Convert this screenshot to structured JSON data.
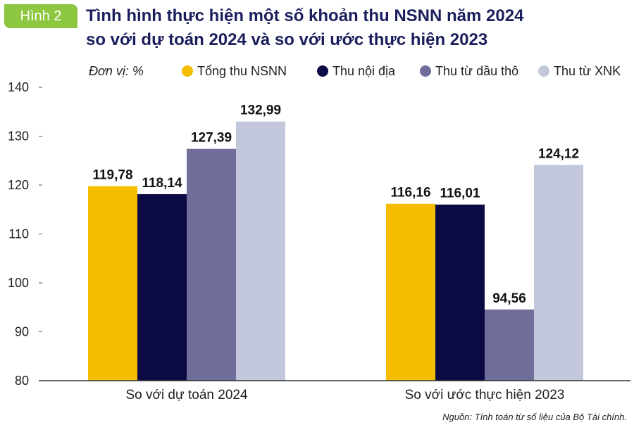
{
  "badge": "Hình 2",
  "title_line1": "Tình hình thực hiện một số khoản thu NSNN năm 2024",
  "title_line2": "so với dự toán 2024 và so với ước thực hiện 2023",
  "unit_label": "Đơn vị: %",
  "source": "Nguồn: Tính toán từ số liệu của Bộ Tài chính.",
  "chart_data": {
    "type": "bar",
    "categories": [
      "So với dự toán 2024",
      "So với ước thực hiện 2023"
    ],
    "series": [
      {
        "name": "Tổng thu NSNN",
        "color": "#f5bd00",
        "values": [
          119.78,
          116.16
        ],
        "labels": [
          "119,78",
          "116,16"
        ]
      },
      {
        "name": "Thu nội địa",
        "color": "#0b0a45",
        "values": [
          118.14,
          116.01
        ],
        "labels": [
          "118,14",
          "116,01"
        ]
      },
      {
        "name": "Thu từ dầu thô",
        "color": "#6f6d99",
        "values": [
          127.39,
          94.56
        ],
        "labels": [
          "127,39",
          "94,56"
        ]
      },
      {
        "name": "Thu từ XNK",
        "color": "#c3c7dc",
        "values": [
          132.99,
          124.12
        ],
        "labels": [
          "132,99",
          "124,12"
        ]
      }
    ],
    "ylim": [
      80,
      140
    ],
    "yticks": [
      80,
      90,
      100,
      110,
      120,
      130,
      140
    ],
    "legend_position": "top",
    "grid": false
  }
}
